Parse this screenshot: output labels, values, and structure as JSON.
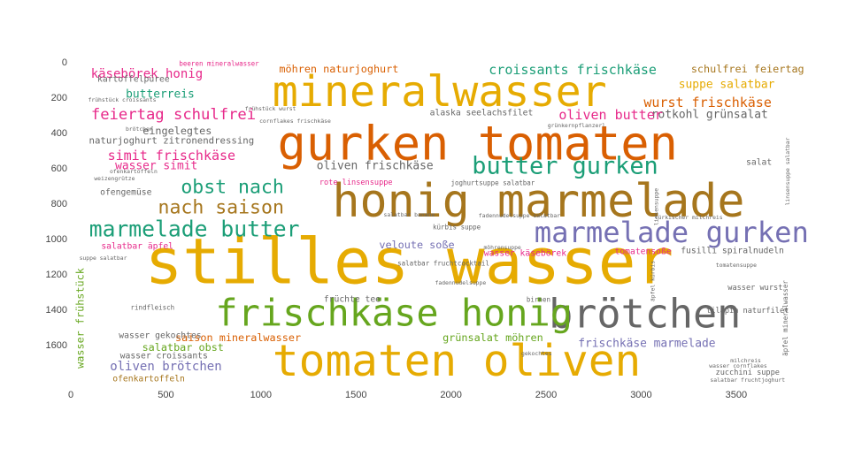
{
  "chart_data": {
    "type": "wordcloud",
    "title": "",
    "xlabel": "",
    "ylabel": "",
    "xlim": [
      0,
      3780
    ],
    "ylim": [
      1820,
      -40
    ],
    "x_ticks": [
      0,
      500,
      1000,
      1500,
      2000,
      2500,
      3000,
      3500
    ],
    "y_ticks": [
      0,
      200,
      400,
      600,
      800,
      1000,
      1200,
      1400,
      1600
    ],
    "grid": false,
    "legend": "none",
    "words": [
      {
        "text": "stilles wasser",
        "x": 1780,
        "y": 1130,
        "size": 330,
        "color": "#e6ab02"
      },
      {
        "text": "gurken tomaten",
        "x": 2140,
        "y": 460,
        "size": 250,
        "color": "#d95f02"
      },
      {
        "text": "honig marmelade",
        "x": 2460,
        "y": 790,
        "size": 240,
        "color": "#a6761d"
      },
      {
        "text": "mineralwasser",
        "x": 1940,
        "y": 170,
        "size": 225,
        "color": "#e6ab02"
      },
      {
        "text": "tomaten oliven",
        "x": 2030,
        "y": 1690,
        "size": 230,
        "color": "#e6ab02"
      },
      {
        "text": "brötchen",
        "x": 3020,
        "y": 1425,
        "size": 210,
        "color": "#666666"
      },
      {
        "text": "frischkäse honig",
        "x": 1700,
        "y": 1420,
        "size": 195,
        "color": "#66a61e"
      },
      {
        "text": "marmelade gurken",
        "x": 3160,
        "y": 965,
        "size": 150,
        "color": "#7570b3"
      },
      {
        "text": "butter gurken",
        "x": 2600,
        "y": 590,
        "size": 125,
        "color": "#1b9e77"
      },
      {
        "text": "marmelade butter",
        "x": 650,
        "y": 945,
        "size": 115,
        "color": "#1b9e77"
      },
      {
        "text": "obst nach",
        "x": 850,
        "y": 710,
        "size": 100,
        "color": "#1b9e77"
      },
      {
        "text": "nach saison",
        "x": 790,
        "y": 825,
        "size": 100,
        "color": "#a6761d"
      },
      {
        "text": "feiertag schulfrei",
        "x": 540,
        "y": 300,
        "size": 80,
        "color": "#e7298a"
      },
      {
        "text": "simit frischkäse",
        "x": 530,
        "y": 530,
        "size": 70,
        "color": "#e7298a"
      },
      {
        "text": "käsebörek honig",
        "x": 400,
        "y": 70,
        "size": 65,
        "color": "#e7298a"
      },
      {
        "text": "butterreis",
        "x": 470,
        "y": 185,
        "size": 60,
        "color": "#1b9e77"
      },
      {
        "text": "eingelegtes",
        "x": 560,
        "y": 390,
        "size": 55,
        "color": "#666666"
      },
      {
        "text": "naturjoghurt zitronendressing",
        "x": 530,
        "y": 445,
        "size": 50,
        "color": "#666666"
      },
      {
        "text": "wasser simit",
        "x": 450,
        "y": 590,
        "size": 60,
        "color": "#e7298a"
      },
      {
        "text": "ofengemüse",
        "x": 290,
        "y": 740,
        "size": 45,
        "color": "#666666"
      },
      {
        "text": "kartoffelpüree",
        "x": 330,
        "y": 100,
        "size": 45,
        "color": "#666666"
      },
      {
        "text": "möhren naturjoghurt",
        "x": 1410,
        "y": 40,
        "size": 55,
        "color": "#d95f02"
      },
      {
        "text": "croissants frischkäse",
        "x": 2640,
        "y": 45,
        "size": 70,
        "color": "#1b9e77"
      },
      {
        "text": "schulfrei feiertag",
        "x": 3560,
        "y": 40,
        "size": 55,
        "color": "#a6761d"
      },
      {
        "text": "suppe salatbar",
        "x": 3450,
        "y": 130,
        "size": 60,
        "color": "#e6ab02"
      },
      {
        "text": "wurst frischkäse",
        "x": 3350,
        "y": 230,
        "size": 70,
        "color": "#d95f02"
      },
      {
        "text": "rotkohl grünsalat",
        "x": 3360,
        "y": 300,
        "size": 60,
        "color": "#666666"
      },
      {
        "text": "oliven butter",
        "x": 2840,
        "y": 300,
        "size": 70,
        "color": "#e7298a"
      },
      {
        "text": "alaska seelachsfilet",
        "x": 2160,
        "y": 290,
        "size": 45,
        "color": "#666666"
      },
      {
        "text": "salat",
        "x": 3620,
        "y": 570,
        "size": 45,
        "color": "#666666"
      },
      {
        "text": "oliven frischkäse",
        "x": 1600,
        "y": 590,
        "size": 60,
        "color": "#666666"
      },
      {
        "text": "rote linsensuppe",
        "x": 1500,
        "y": 685,
        "size": 40,
        "color": "#e7298a"
      },
      {
        "text": "veloute soße",
        "x": 1820,
        "y": 1035,
        "size": 55,
        "color": "#7570b3"
      },
      {
        "text": "wasser käsebörek",
        "x": 2390,
        "y": 1085,
        "size": 45,
        "color": "#e7298a"
      },
      {
        "text": "tomatensoße",
        "x": 3010,
        "y": 1075,
        "size": 45,
        "color": "#e7298a"
      },
      {
        "text": "fusilli spiralnudeln",
        "x": 3480,
        "y": 1070,
        "size": 45,
        "color": "#666666"
      },
      {
        "text": "salatbar äpfel",
        "x": 350,
        "y": 1045,
        "size": 45,
        "color": "#e7298a"
      },
      {
        "text": "früchte tee",
        "x": 1480,
        "y": 1345,
        "size": 45,
        "color": "#666666"
      },
      {
        "text": "grünsalat möhren",
        "x": 2220,
        "y": 1560,
        "size": 55,
        "color": "#66a61e"
      },
      {
        "text": "saison mineralwasser",
        "x": 880,
        "y": 1560,
        "size": 55,
        "color": "#d95f02"
      },
      {
        "text": "salatbar obst",
        "x": 590,
        "y": 1615,
        "size": 55,
        "color": "#66a61e"
      },
      {
        "text": "wasser gekochtes",
        "x": 470,
        "y": 1550,
        "size": 45,
        "color": "#666666"
      },
      {
        "text": "wasser croissants",
        "x": 490,
        "y": 1665,
        "size": 45,
        "color": "#666666"
      },
      {
        "text": "oliven brötchen",
        "x": 500,
        "y": 1725,
        "size": 65,
        "color": "#7570b3"
      },
      {
        "text": "ofenkartoffeln",
        "x": 410,
        "y": 1795,
        "size": 45,
        "color": "#a6761d"
      },
      {
        "text": "frischkäse marmelade",
        "x": 3030,
        "y": 1595,
        "size": 60,
        "color": "#7570b3"
      },
      {
        "text": "wasser frühstück",
        "x": 50,
        "y": 1450,
        "size": 55,
        "color": "#66a61e",
        "rotate": -90
      },
      {
        "text": "wasser wurst",
        "x": 3600,
        "y": 1280,
        "size": 40,
        "color": "#666666"
      },
      {
        "text": "tilapia naturfilet",
        "x": 3560,
        "y": 1410,
        "size": 40,
        "color": "#666666"
      },
      {
        "text": "zucchini suppe",
        "x": 3560,
        "y": 1760,
        "size": 40,
        "color": "#666666"
      },
      {
        "text": "salatbar fruchtcocktail",
        "x": 1960,
        "y": 1140,
        "size": 35,
        "color": "#666666"
      },
      {
        "text": "kürbis suppe",
        "x": 2030,
        "y": 935,
        "size": 35,
        "color": "#666666"
      },
      {
        "text": "joghurtsuppe salatbar",
        "x": 2220,
        "y": 685,
        "size": 35,
        "color": "#666666"
      },
      {
        "text": "grünkernpflanzerl",
        "x": 2660,
        "y": 360,
        "size": 30,
        "color": "#666666"
      },
      {
        "text": "türkischer milchreis",
        "x": 3250,
        "y": 880,
        "size": 30,
        "color": "#666666"
      },
      {
        "text": "milchreis",
        "x": 3550,
        "y": 1690,
        "size": 30,
        "color": "#666666"
      },
      {
        "text": "birnen",
        "x": 2460,
        "y": 1345,
        "size": 35,
        "color": "#666666"
      },
      {
        "text": "gekochtes",
        "x": 2450,
        "y": 1650,
        "size": 30,
        "color": "#666666"
      },
      {
        "text": "rindfleisch",
        "x": 430,
        "y": 1390,
        "size": 35,
        "color": "#666666"
      },
      {
        "text": "ofenkartoffeln",
        "x": 330,
        "y": 620,
        "size": 30,
        "color": "#666666"
      },
      {
        "text": "beeren mineralwasser",
        "x": 780,
        "y": 10,
        "size": 35,
        "color": "#e7298a"
      },
      {
        "text": "frühstück wurst",
        "x": 1050,
        "y": 265,
        "size": 30,
        "color": "#666666"
      },
      {
        "text": "äpfel mineralwasser",
        "x": 3760,
        "y": 1450,
        "size": 35,
        "color": "#666666",
        "rotate": -90
      },
      {
        "text": "linsensuppe salatbar",
        "x": 3770,
        "y": 620,
        "size": 30,
        "color": "#666666",
        "rotate": -90
      },
      {
        "text": "linsensuppe",
        "x": 3080,
        "y": 820,
        "size": 30,
        "color": "#666666",
        "rotate": -90
      },
      {
        "text": "äpfel kürbis",
        "x": 3060,
        "y": 1240,
        "size": 30,
        "color": "#666666",
        "rotate": -90
      },
      {
        "text": "frühstück croissants",
        "x": 270,
        "y": 215,
        "size": 30,
        "color": "#666666"
      },
      {
        "text": "cornflakes frischkäse",
        "x": 1180,
        "y": 335,
        "size": 30,
        "color": "#666666"
      },
      {
        "text": "brötchen",
        "x": 360,
        "y": 380,
        "size": 30,
        "color": "#666666"
      },
      {
        "text": "weizengrütze",
        "x": 230,
        "y": 660,
        "size": 30,
        "color": "#666666"
      },
      {
        "text": "salatbar banane",
        "x": 1780,
        "y": 865,
        "size": 30,
        "color": "#666666"
      },
      {
        "text": "fadennudelsuppe salatbar",
        "x": 2360,
        "y": 870,
        "size": 30,
        "color": "#666666"
      },
      {
        "text": "möhrensuppe",
        "x": 2270,
        "y": 1050,
        "size": 30,
        "color": "#666666"
      },
      {
        "text": "tomatensuppe",
        "x": 3500,
        "y": 1150,
        "size": 30,
        "color": "#666666"
      },
      {
        "text": "fadennudelsuppe",
        "x": 2050,
        "y": 1250,
        "size": 30,
        "color": "#666666"
      },
      {
        "text": "wasser cornflakes",
        "x": 3510,
        "y": 1720,
        "size": 30,
        "color": "#666666"
      },
      {
        "text": "salatbar fruchtjoghurt",
        "x": 3560,
        "y": 1800,
        "size": 30,
        "color": "#666666"
      },
      {
        "text": "suppe salatbar",
        "x": 170,
        "y": 1110,
        "size": 30,
        "color": "#666666"
      }
    ]
  }
}
